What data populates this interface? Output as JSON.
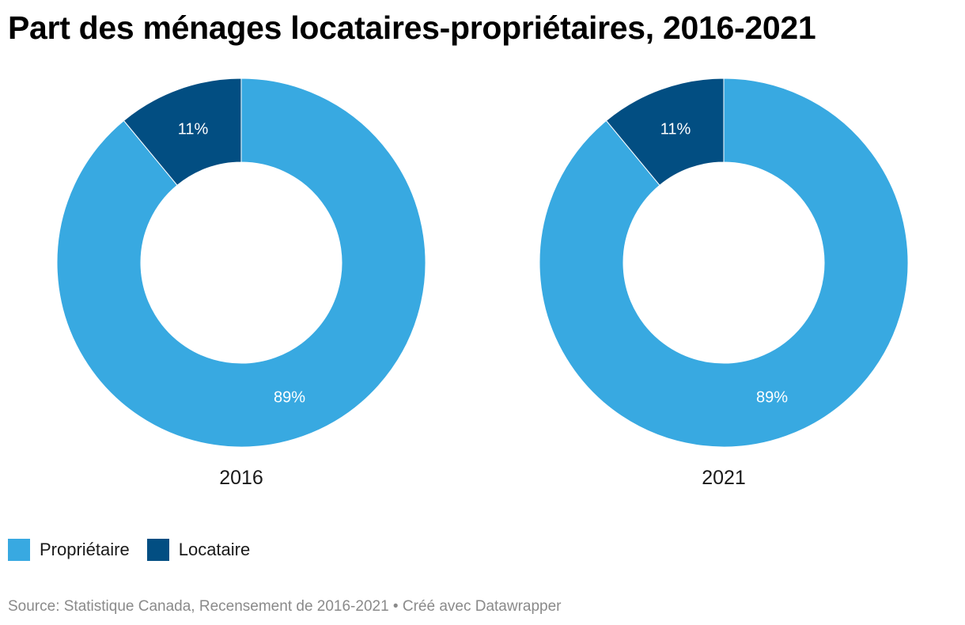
{
  "title": "Part des ménages locataires-propriétaires, 2016-2021",
  "legend": [
    {
      "label": "Propriétaire",
      "color": "#38a9e1"
    },
    {
      "label": "Locataire",
      "color": "#024e82"
    }
  ],
  "source": "Source: Statistique Canada, Recensement de 2016-2021 • Créé avec Datawrapper",
  "chart_data": [
    {
      "type": "pie",
      "donut": true,
      "title": "2016",
      "series": [
        {
          "name": "Propriétaire",
          "value": 89,
          "label": "89%",
          "color": "#38a9e1"
        },
        {
          "name": "Locataire",
          "value": 11,
          "label": "11%",
          "color": "#024e82"
        }
      ]
    },
    {
      "type": "pie",
      "donut": true,
      "title": "2021",
      "series": [
        {
          "name": "Propriétaire",
          "value": 89,
          "label": "89%",
          "color": "#38a9e1"
        },
        {
          "name": "Locataire",
          "value": 11,
          "label": "11%",
          "color": "#024e82"
        }
      ]
    }
  ]
}
